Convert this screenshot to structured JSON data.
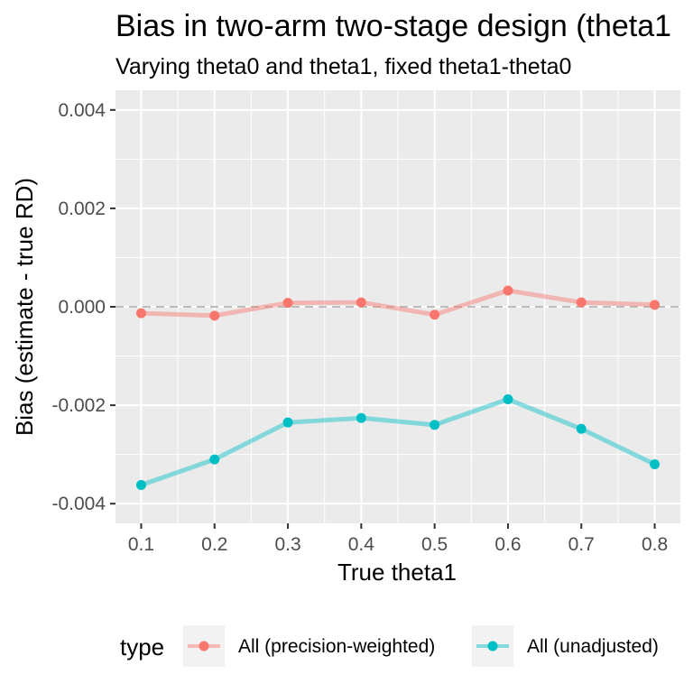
{
  "chart_data": {
    "type": "line",
    "title": "Bias in two-arm two-stage design (theta1",
    "subtitle": "Varying theta0 and theta1, fixed theta1-theta0",
    "xlabel": "True theta1",
    "ylabel": "Bias (estimate - true RD)",
    "x": [
      0.1,
      0.2,
      0.3,
      0.4,
      0.5,
      0.6,
      0.7,
      0.8
    ],
    "x_tick_labels": [
      "0.1",
      "0.2",
      "0.3",
      "0.4",
      "0.5",
      "0.6",
      "0.7",
      "0.8"
    ],
    "xlim": [
      0.065,
      0.835
    ],
    "ylim": [
      -0.0044,
      0.0044
    ],
    "y_ticks": [
      0.004,
      0.002,
      0.0,
      -0.002,
      -0.004
    ],
    "y_tick_labels": [
      "0.004",
      "0.002",
      "0.000",
      "-0.002",
      "-0.004"
    ],
    "reference_line": 0,
    "grid": true,
    "legend_title": "type",
    "legend_position": "bottom",
    "series": [
      {
        "name": "All (precision-weighted)",
        "color": "#F8766D",
        "values": [
          -0.00013,
          -0.00018,
          8e-05,
          9e-05,
          -0.00016,
          0.00033,
          9e-05,
          4e-05
        ]
      },
      {
        "name": "All (unadjusted)",
        "color": "#00BFC4",
        "values": [
          -0.00362,
          -0.0031,
          -0.00235,
          -0.00226,
          -0.0024,
          -0.00188,
          -0.00248,
          -0.0032
        ]
      }
    ]
  }
}
